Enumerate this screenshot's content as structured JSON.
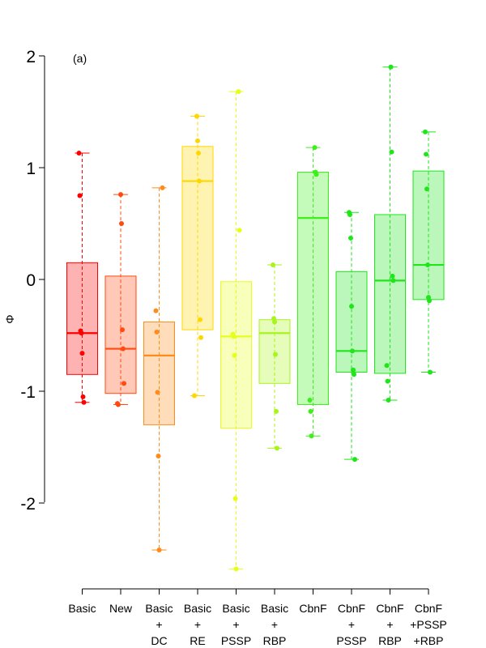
{
  "chart_data": {
    "type": "box",
    "panel_label": "(a)",
    "ylabel": "Φ",
    "ylim": [
      -2.75,
      2
    ],
    "yticks": [
      -2,
      -1,
      0,
      1,
      2
    ],
    "yticklabels": [
      "-2",
      "-1",
      "0",
      "1",
      "2"
    ],
    "grid": false,
    "legend": "none",
    "categories": [
      {
        "lines": [
          "Basic"
        ],
        "color": "#ff0000",
        "whisker": [
          -1.1,
          1.13
        ],
        "box": [
          -0.85,
          0.15
        ],
        "median": -0.48,
        "points": [
          1.13,
          0.75,
          -0.46,
          -0.48,
          -0.66,
          -1.05,
          -1.1
        ]
      },
      {
        "lines": [
          "New"
        ],
        "color": "#ff4a10",
        "whisker": [
          -1.12,
          0.76
        ],
        "box": [
          -1.02,
          0.03
        ],
        "median": -0.62,
        "points": [
          0.76,
          0.5,
          -0.45,
          -0.62,
          -0.93,
          -1.11,
          -1.12
        ]
      },
      {
        "lines": [
          "Basic",
          "+",
          "DC"
        ],
        "color": "#ff8c1a",
        "whisker": [
          -2.42,
          0.82
        ],
        "box": [
          -1.3,
          -0.38
        ],
        "median": -0.68,
        "points": [
          0.82,
          -0.28,
          -0.47,
          -1.01,
          -1.58,
          -2.42
        ]
      },
      {
        "lines": [
          "Basic",
          "+",
          "RE"
        ],
        "color": "#ffd700",
        "whisker": [
          -1.04,
          1.46
        ],
        "box": [
          -0.45,
          1.19
        ],
        "median": 0.88,
        "points": [
          1.46,
          1.24,
          1.13,
          0.88,
          -0.36,
          -0.52,
          -1.04
        ]
      },
      {
        "lines": [
          "Basic",
          "+",
          "PSSP"
        ],
        "color": "#e6ff1a",
        "whisker": [
          -2.59,
          1.68
        ],
        "box": [
          -1.33,
          -0.02
        ],
        "median": -0.51,
        "points": [
          1.68,
          0.44,
          -0.49,
          -0.51,
          -0.68,
          -1.96,
          -2.59
        ]
      },
      {
        "lines": [
          "Basic",
          "+",
          "RBP"
        ],
        "color": "#a8f51a",
        "whisker": [
          -1.51,
          0.13
        ],
        "box": [
          -0.93,
          -0.36
        ],
        "median": -0.48,
        "points": [
          0.13,
          -0.35,
          -0.38,
          -0.67,
          -1.18,
          -1.51
        ]
      },
      {
        "lines": [
          "CbnF"
        ],
        "color": "#3cf01a",
        "whisker": [
          -1.4,
          1.18
        ],
        "box": [
          -1.12,
          0.96
        ],
        "median": 0.55,
        "points": [
          1.18,
          0.96,
          0.94,
          -1.08,
          -1.18,
          -1.4
        ]
      },
      {
        "lines": [
          "CbnF",
          "+",
          "PSSP"
        ],
        "color": "#1ee61a",
        "whisker": [
          -1.61,
          0.6
        ],
        "box": [
          -0.83,
          0.07
        ],
        "median": -0.64,
        "points": [
          0.6,
          0.58,
          0.37,
          -0.24,
          -0.64,
          -0.81,
          -0.85,
          -1.61
        ]
      },
      {
        "lines": [
          "CbnF",
          "+",
          "RBP"
        ],
        "color": "#1ee61a",
        "whisker": [
          -1.08,
          1.9
        ],
        "box": [
          -0.84,
          0.58
        ],
        "median": -0.01,
        "points": [
          1.9,
          1.14,
          0.03,
          -0.01,
          -0.77,
          -0.91,
          -1.08
        ]
      },
      {
        "lines": [
          "CbnF",
          "+PSSP",
          "+RBP"
        ],
        "color": "#1ee61a",
        "whisker": [
          -0.83,
          1.32
        ],
        "box": [
          -0.18,
          0.97
        ],
        "median": 0.13,
        "points": [
          1.32,
          1.12,
          0.81,
          0.13,
          -0.16,
          -0.19,
          -0.83
        ]
      }
    ]
  }
}
